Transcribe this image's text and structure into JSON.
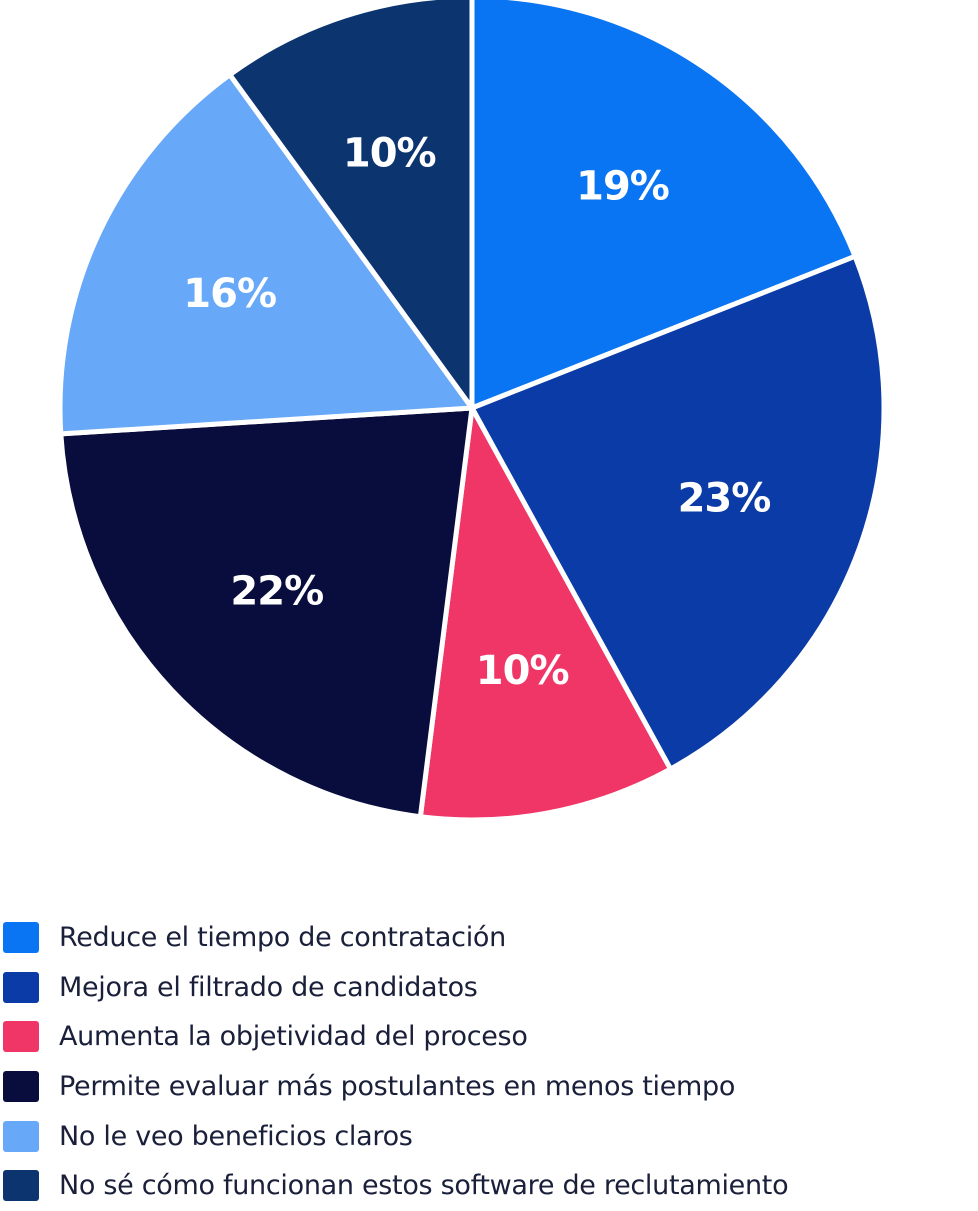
{
  "chart_data": {
    "type": "pie",
    "title": "",
    "slices": [
      {
        "label": "Reduce el tiempo de contratación",
        "value": 19,
        "display": "19%",
        "color": "#0a75f2"
      },
      {
        "label": "Mejora el filtrado de candidatos",
        "value": 23,
        "display": "23%",
        "color": "#0b3ba6"
      },
      {
        "label": "Aumenta la objetividad del proceso",
        "value": 10,
        "display": "10%",
        "color": "#f03567"
      },
      {
        "label": "Permite evaluar más postulantes en menos tiempo",
        "value": 22,
        "display": "22%",
        "color": "#080d3e"
      },
      {
        "label": "No le veo beneficios claros",
        "value": 16,
        "display": "16%",
        "color": "#68a8f8"
      },
      {
        "label": "No sé cómo funcionan estos software de reclutamiento",
        "value": 10,
        "display": "10%",
        "color": "#0c3570"
      }
    ],
    "start_angle_deg": 0,
    "direction": "clockwise",
    "legend_position": "bottom"
  }
}
